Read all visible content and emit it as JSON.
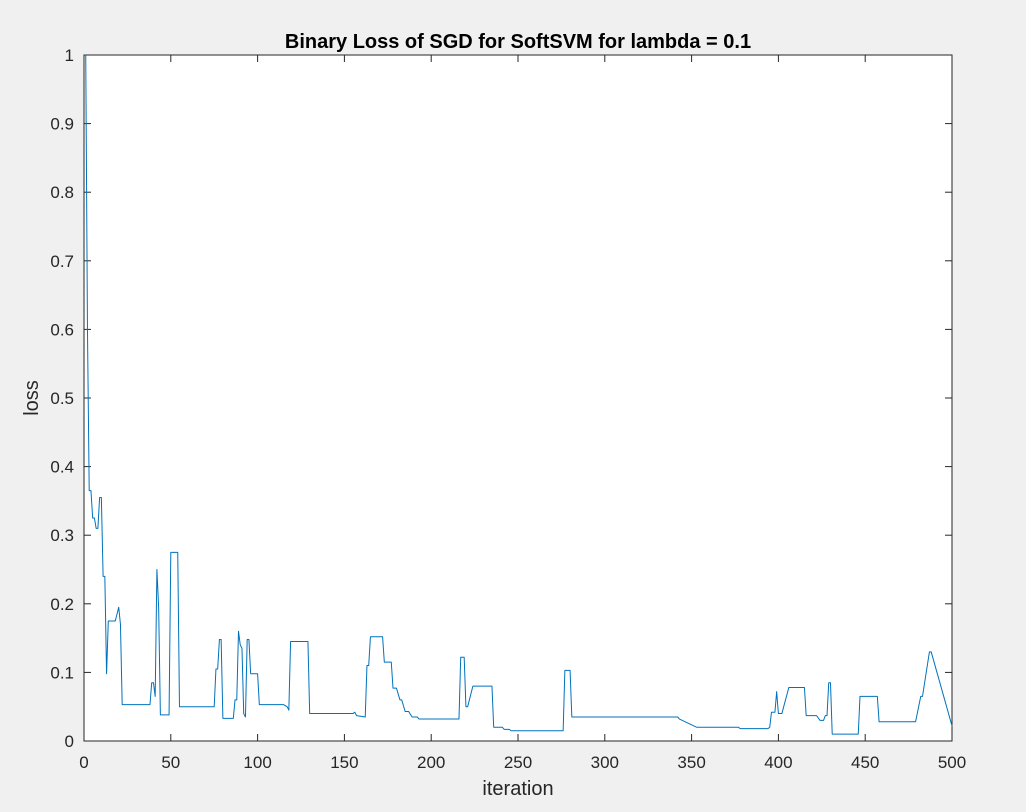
{
  "chart_data": {
    "type": "line",
    "title": "Binary Loss of SGD for SoftSVM for lambda = 0.1",
    "xlabel": "iteration",
    "ylabel": "loss",
    "xlim": [
      0,
      500
    ],
    "ylim": [
      0,
      1
    ],
    "xticks": [
      0,
      50,
      100,
      150,
      200,
      250,
      300,
      350,
      400,
      450,
      500
    ],
    "yticks": [
      0,
      0.1,
      0.2,
      0.3,
      0.4,
      0.5,
      0.6,
      0.7,
      0.8,
      0.9,
      1
    ],
    "x_tick_labels": [
      "0",
      "50",
      "100",
      "150",
      "200",
      "250",
      "300",
      "350",
      "400",
      "450",
      "500"
    ],
    "y_tick_labels": [
      "0",
      "0.1",
      "0.2",
      "0.3",
      "0.4",
      "0.5",
      "0.6",
      "0.7",
      "0.8",
      "0.9",
      "1"
    ],
    "grid": false,
    "line_color": "#0072bd",
    "series": [
      {
        "x": [
          1,
          2,
          3,
          4,
          5,
          6,
          7,
          8,
          9,
          10,
          11,
          12,
          13,
          14,
          15,
          16,
          18,
          20,
          21,
          22,
          23,
          38,
          39,
          40,
          41,
          42,
          43,
          44,
          49,
          50,
          54,
          55,
          75,
          76,
          77,
          78,
          79,
          80,
          81,
          86,
          87,
          88,
          89,
          90,
          91,
          92,
          93,
          94,
          95,
          96,
          97,
          100,
          101,
          115,
          117,
          118,
          119,
          120,
          129,
          130,
          155,
          156,
          157,
          162,
          163,
          164,
          165,
          166,
          172,
          173,
          177,
          178,
          180,
          182,
          183,
          185,
          187,
          189,
          192,
          193,
          199,
          200,
          216,
          217,
          219,
          220,
          221,
          224,
          225,
          235,
          236,
          241,
          242,
          245,
          246,
          276,
          277,
          280,
          281,
          342,
          343,
          353,
          377,
          378,
          394,
          395,
          396,
          398,
          399,
          400,
          401,
          402,
          406,
          407,
          415,
          416,
          422,
          424,
          426,
          427,
          428,
          429,
          430,
          431,
          432,
          446,
          447,
          457,
          458,
          478,
          479,
          482,
          483,
          487,
          488,
          500
        ],
        "y": [
          1,
          0.6,
          0.365,
          0.365,
          0.325,
          0.325,
          0.31,
          0.31,
          0.355,
          0.355,
          0.24,
          0.24,
          0.098,
          0.175,
          0.175,
          0.175,
          0.175,
          0.195,
          0.17,
          0.053,
          0.053,
          0.053,
          0.085,
          0.085,
          0.065,
          0.25,
          0.195,
          0.038,
          0.038,
          0.275,
          0.275,
          0.05,
          0.05,
          0.105,
          0.105,
          0.148,
          0.148,
          0.033,
          0.033,
          0.033,
          0.06,
          0.06,
          0.16,
          0.14,
          0.135,
          0.04,
          0.035,
          0.148,
          0.148,
          0.098,
          0.098,
          0.098,
          0.053,
          0.053,
          0.05,
          0.045,
          0.145,
          0.145,
          0.145,
          0.04,
          0.04,
          0.042,
          0.037,
          0.035,
          0.11,
          0.11,
          0.152,
          0.152,
          0.152,
          0.115,
          0.115,
          0.077,
          0.077,
          0.06,
          0.06,
          0.043,
          0.043,
          0.035,
          0.035,
          0.032,
          0.032,
          0.032,
          0.032,
          0.122,
          0.122,
          0.05,
          0.05,
          0.08,
          0.08,
          0.08,
          0.02,
          0.02,
          0.017,
          0.017,
          0.015,
          0.015,
          0.103,
          0.103,
          0.035,
          0.035,
          0.032,
          0.02,
          0.02,
          0.018,
          0.018,
          0.02,
          0.042,
          0.042,
          0.072,
          0.04,
          0.04,
          0.04,
          0.078,
          0.078,
          0.078,
          0.037,
          0.037,
          0.03,
          0.03,
          0.037,
          0.037,
          0.085,
          0.085,
          0.01,
          0.01,
          0.01,
          0.065,
          0.065,
          0.028,
          0.028,
          0.028,
          0.065,
          0.065,
          0.13,
          0.13,
          0.022
        ]
      }
    ]
  }
}
